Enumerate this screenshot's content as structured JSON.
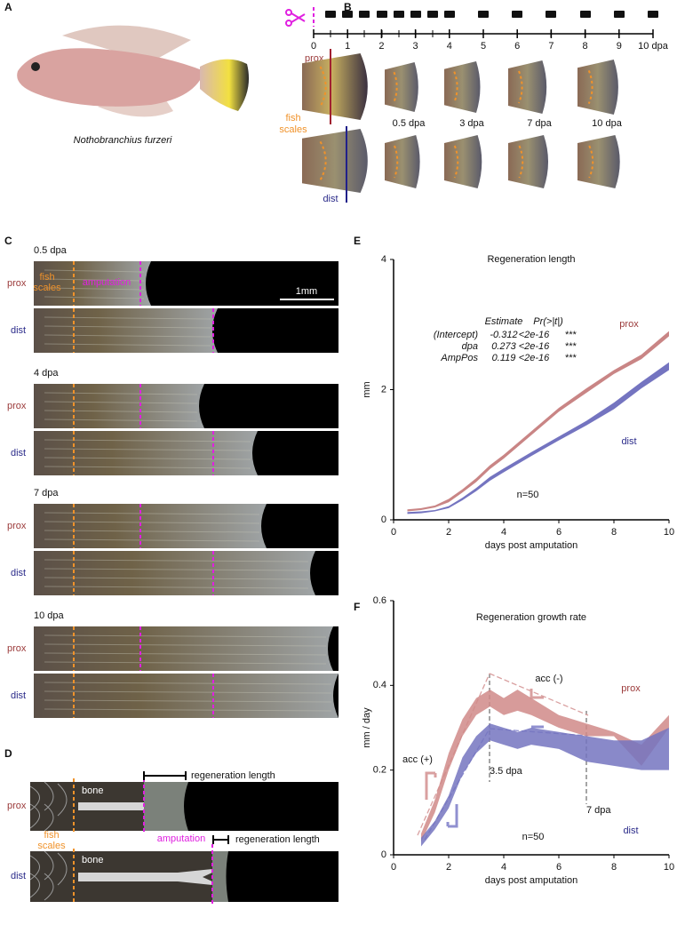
{
  "panel_labels": [
    "A",
    "B",
    "C",
    "D",
    "E",
    "F"
  ],
  "panel_a": {
    "caption": "Nothobranchius furzeri"
  },
  "panel_b": {
    "timeline_labels": [
      "0",
      "1",
      "2",
      "3",
      "4",
      "5",
      "6",
      "7",
      "8",
      "9",
      "10 dpa"
    ],
    "prox": "prox",
    "dist": "dist",
    "fish_scales": [
      "fish",
      "scales"
    ],
    "fin_labels": [
      "0.5 dpa",
      "3 dpa",
      "7 dpa",
      "10 dpa"
    ]
  },
  "panel_c": {
    "timepoints": [
      "0.5 dpa",
      "4 dpa",
      "7 dpa",
      "10 dpa"
    ],
    "prox": "prox",
    "dist": "dist",
    "fish_scales": [
      "fish",
      "scales"
    ],
    "amputation": "amputation",
    "scale_bar": "1mm"
  },
  "panel_d": {
    "prox": "prox",
    "dist": "dist",
    "bone": "bone",
    "fish_scales": [
      "fish",
      "scales"
    ],
    "amputation": "amputation",
    "regeneration_length": "regeneration length"
  },
  "chart_data": [
    {
      "type": "band",
      "title": "Regeneration length",
      "xlabel": "days post amputation",
      "ylabel": "mm",
      "x": [
        0.5,
        1,
        1.5,
        2,
        2.5,
        3,
        3.5,
        4,
        5,
        6,
        7,
        8,
        9,
        10
      ],
      "series": [
        {
          "name": "prox",
          "color": "#c98585",
          "lower": [
            0.13,
            0.15,
            0.19,
            0.27,
            0.42,
            0.58,
            0.78,
            0.94,
            1.3,
            1.66,
            1.95,
            2.24,
            2.47,
            2.82
          ],
          "upper": [
            0.16,
            0.18,
            0.22,
            0.32,
            0.47,
            0.64,
            0.84,
            1.0,
            1.36,
            1.72,
            2.02,
            2.3,
            2.54,
            2.9
          ]
        },
        {
          "name": "dist",
          "color": "#7474c0",
          "lower": [
            0.09,
            0.1,
            0.13,
            0.18,
            0.3,
            0.44,
            0.6,
            0.73,
            0.98,
            1.22,
            1.45,
            1.7,
            2.02,
            2.3
          ],
          "upper": [
            0.12,
            0.13,
            0.15,
            0.21,
            0.34,
            0.49,
            0.66,
            0.79,
            1.04,
            1.28,
            1.52,
            1.8,
            2.12,
            2.42
          ]
        }
      ],
      "xlim": [
        0,
        10
      ],
      "xticks": [
        0,
        2,
        4,
        6,
        8,
        10
      ],
      "ylim": [
        0,
        4
      ],
      "yticks": [
        0,
        2,
        4
      ],
      "n_label": "n=50",
      "table": {
        "header": [
          "Estimate",
          "Pr(>|t|)"
        ],
        "rows": [
          [
            "(Intercept)",
            "-0.312",
            "<2e-16",
            "***"
          ],
          [
            "dpa",
            "0.273",
            "<2e-16",
            "***"
          ],
          [
            "AmpPos",
            "0.119",
            "<2e-16",
            "***"
          ]
        ]
      }
    },
    {
      "type": "band",
      "title": "Regeneration growth rate",
      "xlabel": "days post amputation",
      "ylabel": "mm / day",
      "x": [
        1,
        1.5,
        2,
        2.5,
        3,
        3.5,
        4,
        4.5,
        5,
        6,
        7,
        8,
        9,
        10
      ],
      "series": [
        {
          "name": "prox",
          "color": "#d08a88",
          "lower": [
            0.03,
            0.1,
            0.2,
            0.28,
            0.33,
            0.35,
            0.33,
            0.34,
            0.33,
            0.3,
            0.28,
            0.28,
            0.21,
            0.3
          ],
          "upper": [
            0.05,
            0.13,
            0.24,
            0.32,
            0.37,
            0.39,
            0.37,
            0.39,
            0.37,
            0.33,
            0.31,
            0.29,
            0.26,
            0.33
          ]
        },
        {
          "name": "dist",
          "color": "#7474c0",
          "lower": [
            0.02,
            0.06,
            0.11,
            0.19,
            0.24,
            0.27,
            0.26,
            0.25,
            0.26,
            0.25,
            0.22,
            0.21,
            0.2,
            0.2
          ],
          "upper": [
            0.04,
            0.08,
            0.14,
            0.23,
            0.28,
            0.31,
            0.3,
            0.29,
            0.3,
            0.29,
            0.28,
            0.27,
            0.27,
            0.3
          ]
        }
      ],
      "xlim": [
        0,
        10
      ],
      "xticks": [
        0,
        2,
        4,
        6,
        8,
        10
      ],
      "ylim": [
        0,
        0.6
      ],
      "yticks": [
        0,
        0.2,
        0.4,
        0.6
      ],
      "n_label": "n=50",
      "annotations": [
        "3.5 dpa",
        "7 dpa",
        "acc (+)",
        "acc (-)"
      ]
    }
  ]
}
